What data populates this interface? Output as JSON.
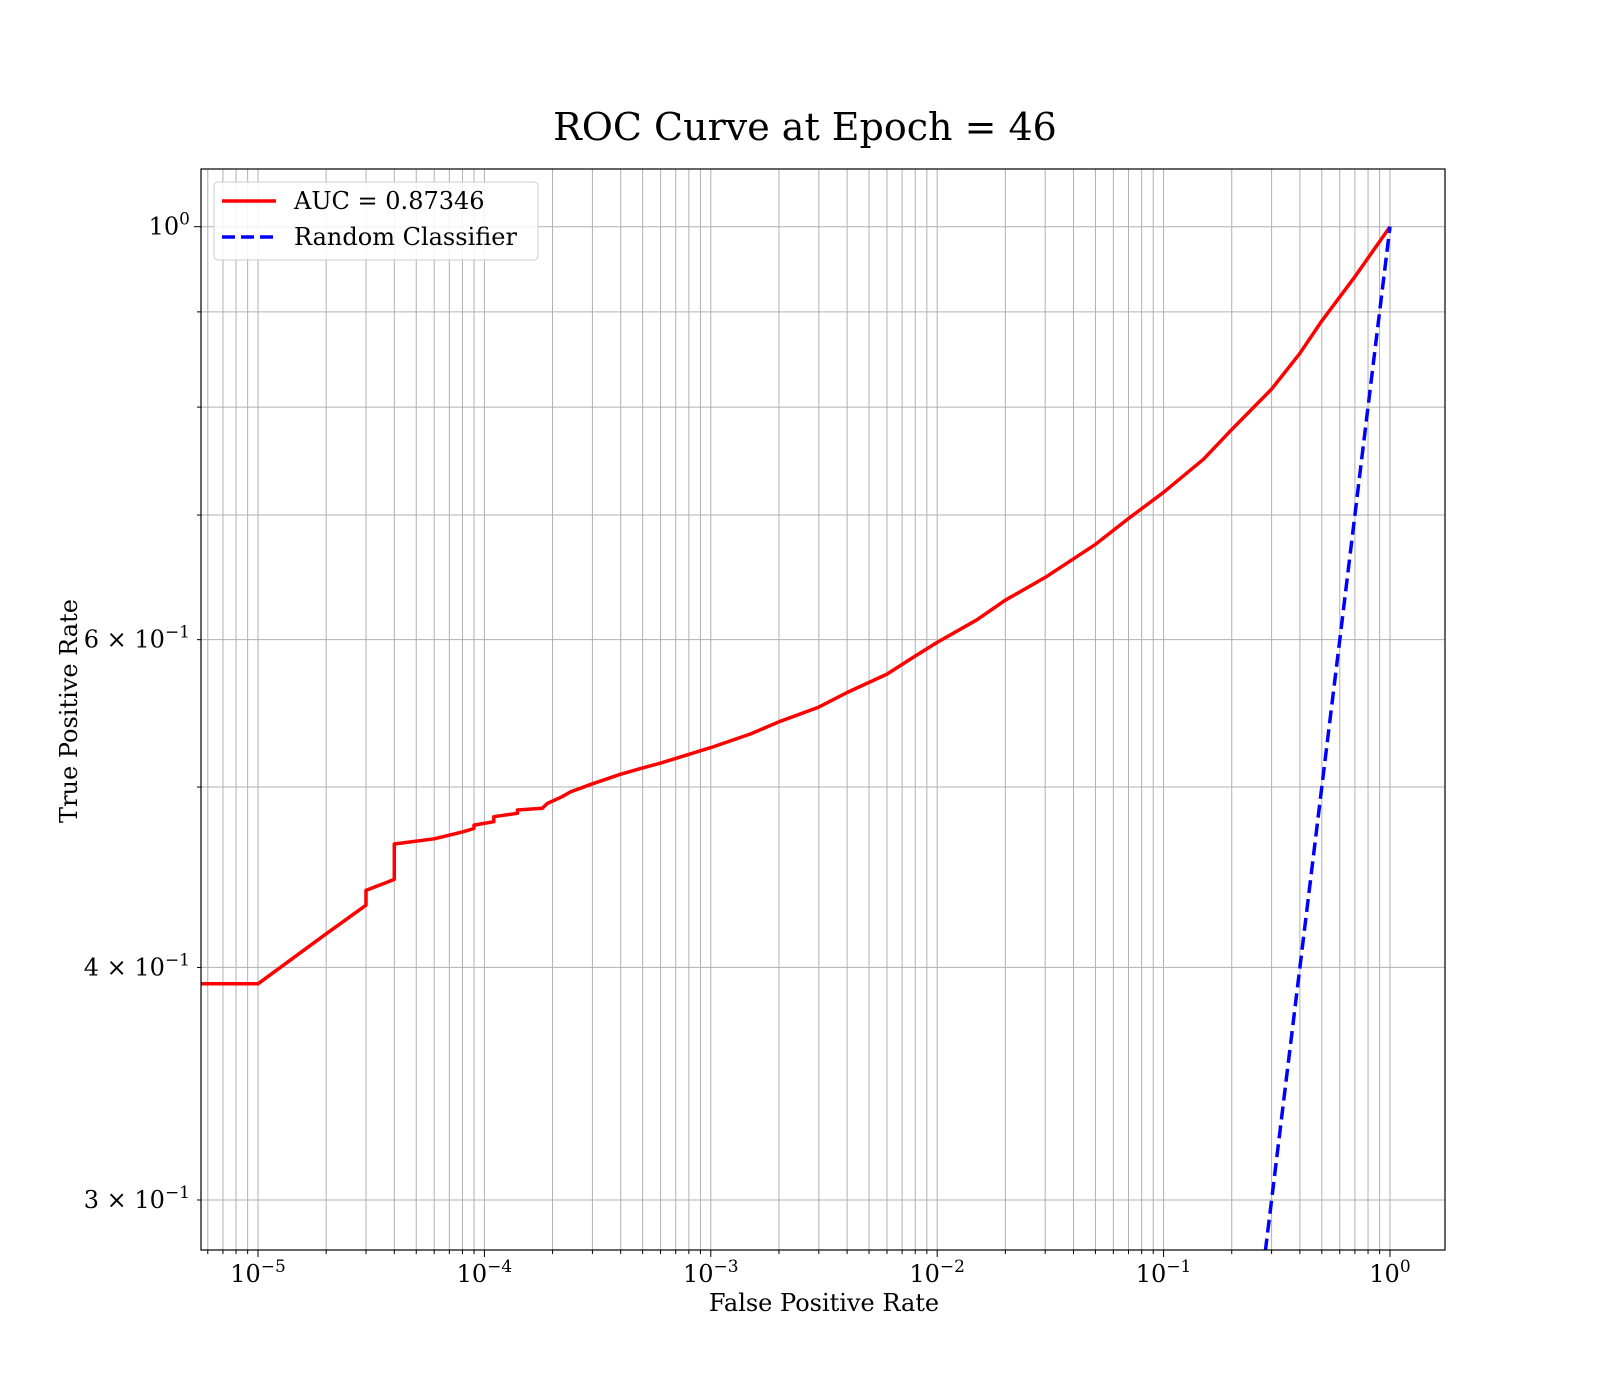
{
  "chart_data": {
    "type": "line",
    "title": "ROC Curve at Epoch = 46",
    "xlabel": "False Positive Rate",
    "ylabel": "True Positive Rate",
    "xscale": "log",
    "yscale": "log",
    "xlim": [
      5.6e-06,
      1.75
    ],
    "ylim": [
      0.282,
      1.074
    ],
    "grid": true,
    "grid_which": "both",
    "legend_position": "upper-left",
    "x_ticks": [
      {
        "value": 1e-05,
        "base": "10",
        "exp": "−5"
      },
      {
        "value": 0.0001,
        "base": "10",
        "exp": "−4"
      },
      {
        "value": 0.001,
        "base": "10",
        "exp": "−3"
      },
      {
        "value": 0.01,
        "base": "10",
        "exp": "−2"
      },
      {
        "value": 0.1,
        "base": "10",
        "exp": "−1"
      },
      {
        "value": 1,
        "base": "10",
        "exp": "0"
      }
    ],
    "y_ticks": [
      {
        "value": 1,
        "base": "10",
        "exp": "0"
      },
      {
        "value": 0.6,
        "base": "6 × 10",
        "exp": "−1"
      },
      {
        "value": 0.4,
        "base": "4 × 10",
        "exp": "−1"
      },
      {
        "value": 0.3,
        "base": "3 × 10",
        "exp": "−1"
      }
    ],
    "series": [
      {
        "name": "AUC = 0.87346",
        "color": "#ff0000",
        "dash": "solid",
        "x": [
          5.6e-06,
          1e-05,
          2e-05,
          3e-05,
          3e-05,
          4e-05,
          4e-05,
          6e-05,
          8e-05,
          9e-05,
          9e-05,
          0.00011,
          0.00011,
          0.00014,
          0.00014,
          0.00018,
          0.00019,
          0.00022,
          0.00024,
          0.0003,
          0.0004,
          0.0005,
          0.0006,
          0.0007,
          0.001,
          0.0015,
          0.002,
          0.003,
          0.004,
          0.006,
          0.008,
          0.01,
          0.015,
          0.02,
          0.03,
          0.05,
          0.07,
          0.1,
          0.15,
          0.2,
          0.3,
          0.4,
          0.5,
          0.7,
          1.0
        ],
        "y": [
          0.392,
          0.392,
          0.417,
          0.432,
          0.44,
          0.446,
          0.466,
          0.469,
          0.473,
          0.475,
          0.477,
          0.479,
          0.482,
          0.484,
          0.486,
          0.487,
          0.49,
          0.494,
          0.497,
          0.502,
          0.508,
          0.512,
          0.515,
          0.518,
          0.525,
          0.534,
          0.542,
          0.552,
          0.562,
          0.575,
          0.588,
          0.598,
          0.615,
          0.63,
          0.648,
          0.675,
          0.697,
          0.72,
          0.75,
          0.778,
          0.818,
          0.855,
          0.89,
          0.94,
          1.0
        ]
      },
      {
        "name": "Random Classifier",
        "color": "#0000ff",
        "dash": "dashed",
        "x": [
          0.275,
          0.3,
          0.4,
          0.5,
          0.6,
          0.7,
          0.8,
          0.9,
          1.0
        ],
        "y": [
          0.275,
          0.3,
          0.4,
          0.5,
          0.6,
          0.7,
          0.8,
          0.9,
          1.0
        ]
      }
    ]
  }
}
